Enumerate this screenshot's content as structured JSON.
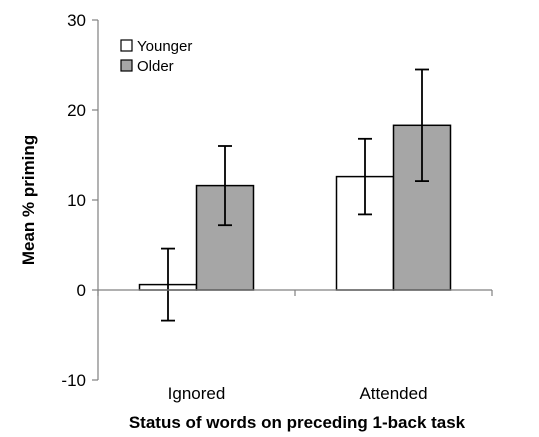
{
  "chart_data": {
    "type": "bar",
    "title": "",
    "xlabel": "Status of words on preceding 1-back task",
    "ylabel": "Mean % priming",
    "ylim": [
      -10,
      30
    ],
    "yticks": [
      -10,
      0,
      10,
      20,
      30
    ],
    "categories": [
      "Ignored",
      "Attended"
    ],
    "series": [
      {
        "name": "Younger",
        "color": "#ffffff",
        "values": [
          0.6,
          12.6
        ],
        "error": [
          4.0,
          4.2
        ]
      },
      {
        "name": "Older",
        "color": "#a6a6a6",
        "values": [
          11.6,
          18.3
        ],
        "error": [
          4.4,
          6.2
        ]
      }
    ],
    "legend_position": "top-left",
    "grid": false
  }
}
